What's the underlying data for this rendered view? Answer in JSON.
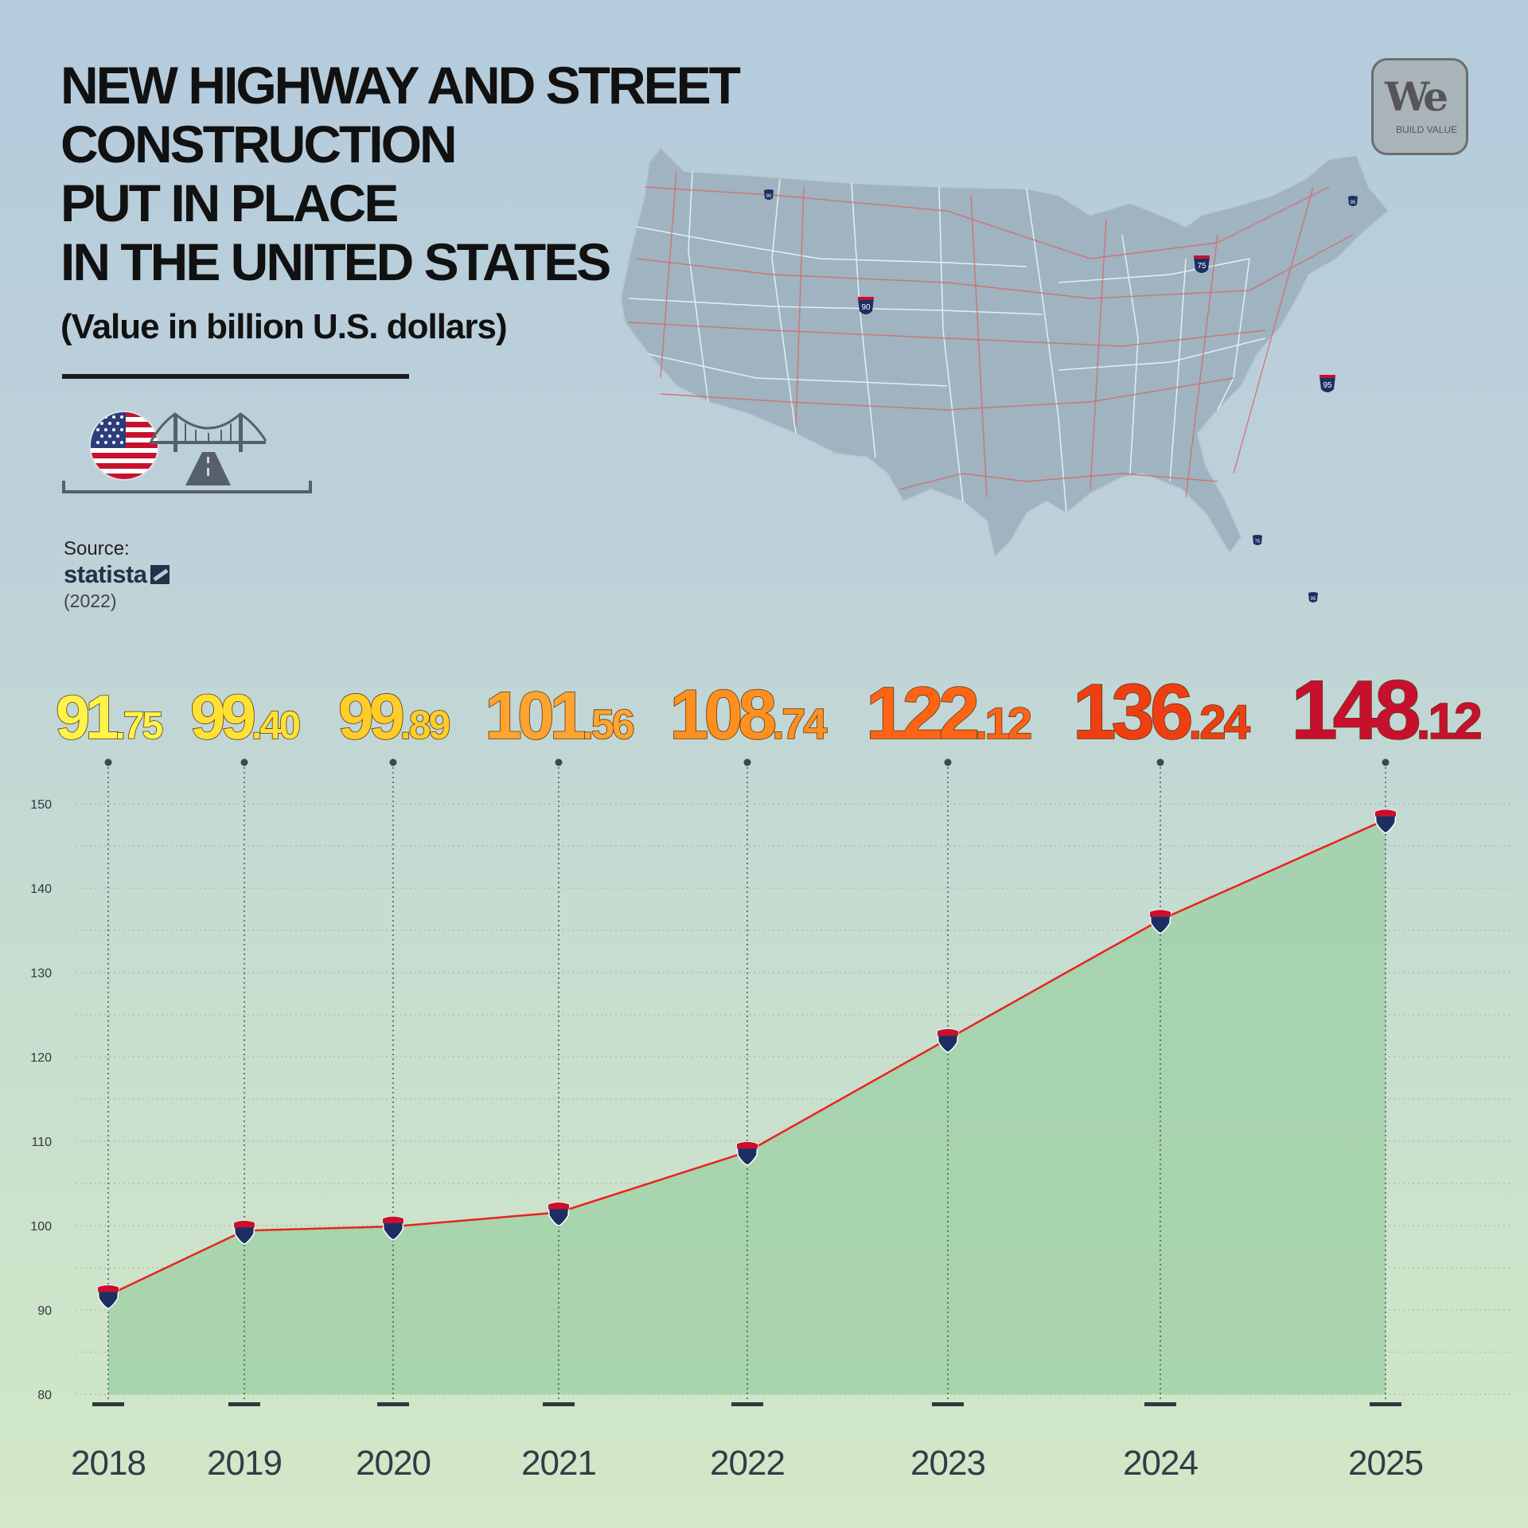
{
  "title_lines": [
    "NEW HIGHWAY AND STREET",
    "CONSTRUCTION",
    "PUT IN PLACE",
    "IN THE UNITED STATES"
  ],
  "subtitle": "(Value in billion U.S. dollars)",
  "source": {
    "label": "Source:",
    "name": "statista",
    "year": "(2022)"
  },
  "logo": {
    "text": "We",
    "tagline": "BUILD VALUE"
  },
  "icons": [
    "us-flag-icon",
    "bridge-road-icon"
  ],
  "map": {
    "shield_labels": [
      "90",
      "90",
      "75",
      "95",
      "95",
      "75",
      "95"
    ]
  },
  "colors": {
    "line": "#e8231f",
    "area": "#9ccfa4",
    "value_labels": [
      "#fff34a",
      "#ffe135",
      "#ffcc2a",
      "#ffa431",
      "#ff8f1f",
      "#ff6416",
      "#f03e13",
      "#c8102e"
    ],
    "shield_blue": "#1c2f63",
    "shield_red": "#c8102e"
  },
  "chart_data": {
    "type": "area",
    "title": "NEW HIGHWAY AND STREET CONSTRUCTION PUT IN PLACE IN THE UNITED STATES",
    "subtitle": "(Value in billion U.S. dollars)",
    "categories": [
      "2018",
      "2019",
      "2020",
      "2021",
      "2022",
      "2023",
      "2024",
      "2025"
    ],
    "values": [
      91.75,
      99.4,
      99.89,
      101.56,
      108.74,
      122.12,
      136.24,
      148.12
    ],
    "value_labels": [
      "91.75",
      "99.40",
      "99.89",
      "101.56",
      "108.74",
      "122.12",
      "136.24",
      "148.12"
    ],
    "yticks": [
      80,
      90,
      100,
      110,
      120,
      130,
      140,
      150
    ],
    "ylim": [
      80,
      150
    ],
    "grid": true,
    "legend": "none"
  }
}
